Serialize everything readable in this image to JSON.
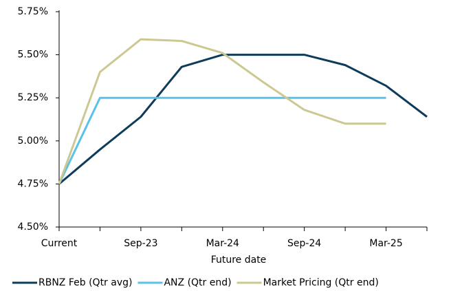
{
  "chart_data": {
    "type": "line",
    "xlabel": "Future date",
    "categories": [
      "Current",
      null,
      "Sep-23",
      null,
      "Mar-24",
      null,
      "Sep-24",
      null,
      "Mar-25",
      null
    ],
    "series": [
      {
        "name": "RBNZ Feb (Qtr avg)",
        "color": "#0d3b5a",
        "values": [
          4.75,
          4.95,
          5.14,
          5.43,
          5.5,
          5.5,
          5.5,
          5.44,
          5.32,
          5.14
        ]
      },
      {
        "name": "ANZ (Qtr end)",
        "color": "#5bc2e7",
        "values": [
          4.75,
          5.25,
          5.25,
          5.25,
          5.25,
          5.25,
          5.25,
          5.25,
          5.25,
          null
        ]
      },
      {
        "name": "Market Pricing (Qtr end)",
        "color": "#cdc792",
        "values": [
          4.75,
          5.4,
          5.59,
          5.58,
          5.51,
          5.34,
          5.18,
          5.1,
          5.1,
          null
        ]
      }
    ],
    "ylim": [
      4.5,
      5.75
    ],
    "yticks": [
      {
        "value": 4.5,
        "label": "4.50%"
      },
      {
        "value": 4.75,
        "label": "4.75%"
      },
      {
        "value": 5.0,
        "label": "5.00%"
      },
      {
        "value": 5.25,
        "label": "5.25%"
      },
      {
        "value": 5.5,
        "label": "5.50%"
      },
      {
        "value": 5.75,
        "label": "5.75%"
      }
    ],
    "legend": "bottom"
  }
}
